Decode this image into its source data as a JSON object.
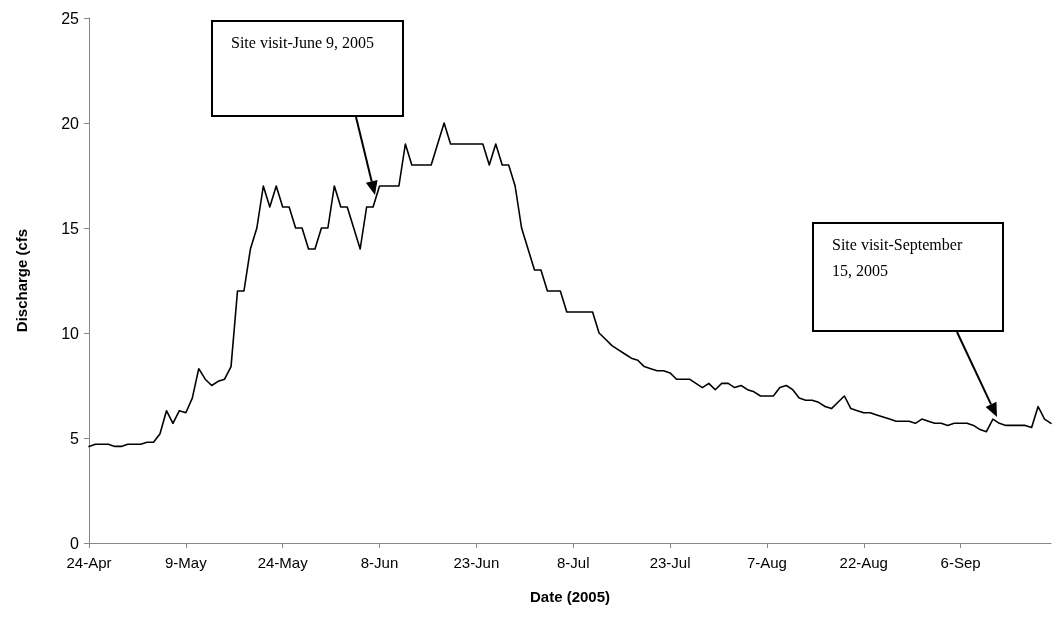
{
  "chart_data": {
    "type": "line",
    "xlabel": "Date (2005)",
    "ylabel": "Discharge (cfs",
    "x": [
      "2005-04-24",
      "2005-04-25",
      "2005-04-26",
      "2005-04-27",
      "2005-04-28",
      "2005-04-29",
      "2005-04-30",
      "2005-05-01",
      "2005-05-02",
      "2005-05-03",
      "2005-05-04",
      "2005-05-05",
      "2005-05-06",
      "2005-05-07",
      "2005-05-08",
      "2005-05-09",
      "2005-05-10",
      "2005-05-11",
      "2005-05-12",
      "2005-05-13",
      "2005-05-14",
      "2005-05-15",
      "2005-05-16",
      "2005-05-17",
      "2005-05-18",
      "2005-05-19",
      "2005-05-20",
      "2005-05-21",
      "2005-05-22",
      "2005-05-23",
      "2005-05-24",
      "2005-05-25",
      "2005-05-26",
      "2005-05-27",
      "2005-05-28",
      "2005-05-29",
      "2005-05-30",
      "2005-05-31",
      "2005-06-01",
      "2005-06-02",
      "2005-06-03",
      "2005-06-04",
      "2005-06-05",
      "2005-06-06",
      "2005-06-07",
      "2005-06-08",
      "2005-06-09",
      "2005-06-10",
      "2005-06-11",
      "2005-06-12",
      "2005-06-13",
      "2005-06-14",
      "2005-06-15",
      "2005-06-16",
      "2005-06-17",
      "2005-06-18",
      "2005-06-19",
      "2005-06-20",
      "2005-06-21",
      "2005-06-22",
      "2005-06-23",
      "2005-06-24",
      "2005-06-25",
      "2005-06-26",
      "2005-06-27",
      "2005-06-28",
      "2005-06-29",
      "2005-06-30",
      "2005-07-01",
      "2005-07-02",
      "2005-07-03",
      "2005-07-04",
      "2005-07-05",
      "2005-07-06",
      "2005-07-07",
      "2005-07-08",
      "2005-07-09",
      "2005-07-10",
      "2005-07-11",
      "2005-07-12",
      "2005-07-13",
      "2005-07-14",
      "2005-07-15",
      "2005-07-16",
      "2005-07-17",
      "2005-07-18",
      "2005-07-19",
      "2005-07-20",
      "2005-07-21",
      "2005-07-22",
      "2005-07-23",
      "2005-07-24",
      "2005-07-25",
      "2005-07-26",
      "2005-07-27",
      "2005-07-28",
      "2005-07-29",
      "2005-07-30",
      "2005-07-31",
      "2005-08-01",
      "2005-08-02",
      "2005-08-03",
      "2005-08-04",
      "2005-08-05",
      "2005-08-06",
      "2005-08-07",
      "2005-08-08",
      "2005-08-09",
      "2005-08-10",
      "2005-08-11",
      "2005-08-12",
      "2005-08-13",
      "2005-08-14",
      "2005-08-15",
      "2005-08-16",
      "2005-08-17",
      "2005-08-18",
      "2005-08-19",
      "2005-08-20",
      "2005-08-21",
      "2005-08-22",
      "2005-08-23",
      "2005-08-24",
      "2005-08-25",
      "2005-08-26",
      "2005-08-27",
      "2005-08-28",
      "2005-08-29",
      "2005-08-30",
      "2005-08-31",
      "2005-09-01",
      "2005-09-02",
      "2005-09-03",
      "2005-09-04",
      "2005-09-05",
      "2005-09-06",
      "2005-09-07",
      "2005-09-08",
      "2005-09-09",
      "2005-09-10",
      "2005-09-11",
      "2005-09-12",
      "2005-09-13",
      "2005-09-14",
      "2005-09-15",
      "2005-09-16",
      "2005-09-17",
      "2005-09-18",
      "2005-09-19",
      "2005-09-20"
    ],
    "series": [
      {
        "color": "#000000",
        "values": [
          4.6,
          4.7,
          4.7,
          4.7,
          4.6,
          4.6,
          4.7,
          4.7,
          4.7,
          4.8,
          4.8,
          5.2,
          6.3,
          5.7,
          6.3,
          6.2,
          6.9,
          8.3,
          7.8,
          7.5,
          7.7,
          7.8,
          8.4,
          12,
          12,
          14,
          15,
          17,
          16,
          17,
          16,
          16,
          15,
          15,
          14,
          14,
          15,
          15,
          17,
          16,
          16,
          15,
          14,
          16,
          16,
          17,
          17,
          17,
          17,
          19,
          18,
          18,
          18,
          18,
          19,
          20,
          19,
          19,
          19,
          19,
          19,
          19,
          18,
          19,
          18,
          18,
          17,
          15,
          14,
          13,
          13,
          12,
          12,
          12,
          11,
          11,
          11,
          11,
          11,
          10,
          9.7,
          9.4,
          9.2,
          9.0,
          8.8,
          8.7,
          8.4,
          8.3,
          8.2,
          8.2,
          8.1,
          7.8,
          7.8,
          7.8,
          7.6,
          7.4,
          7.6,
          7.3,
          7.6,
          7.6,
          7.4,
          7.5,
          7.3,
          7.2,
          7.0,
          7.0,
          7.0,
          7.4,
          7.5,
          7.3,
          6.9,
          6.8,
          6.8,
          6.7,
          6.5,
          6.4,
          6.7,
          7.0,
          6.4,
          6.3,
          6.2,
          6.2,
          6.1,
          6.0,
          5.9,
          5.8,
          5.8,
          5.8,
          5.7,
          5.9,
          5.8,
          5.7,
          5.7,
          5.6,
          5.7,
          5.7,
          5.7,
          5.6,
          5.4,
          5.3,
          5.9,
          5.7,
          5.6,
          5.6,
          5.6,
          5.6,
          5.5,
          6.5,
          5.9,
          5.7
        ]
      }
    ],
    "xlim": [
      "2005-04-24",
      "2005-09-20"
    ],
    "xticks": [
      {
        "value": "2005-04-24",
        "label": "24-Apr"
      },
      {
        "value": "2005-05-09",
        "label": "9-May"
      },
      {
        "value": "2005-05-24",
        "label": "24-May"
      },
      {
        "value": "2005-06-08",
        "label": "8-Jun"
      },
      {
        "value": "2005-06-23",
        "label": "23-Jun"
      },
      {
        "value": "2005-07-08",
        "label": "8-Jul"
      },
      {
        "value": "2005-07-23",
        "label": "23-Jul"
      },
      {
        "value": "2005-08-07",
        "label": "7-Aug"
      },
      {
        "value": "2005-08-22",
        "label": "22-Aug"
      },
      {
        "value": "2005-09-06",
        "label": "6-Sep"
      }
    ],
    "ylim": [
      0,
      25
    ],
    "yticks": [
      0,
      5,
      10,
      15,
      20,
      25
    ],
    "grid": false,
    "marker": "none",
    "line_style": "solid",
    "annotations": [
      "Site visit-June 9, 2005",
      "Site visit-September 15, 2005"
    ]
  }
}
